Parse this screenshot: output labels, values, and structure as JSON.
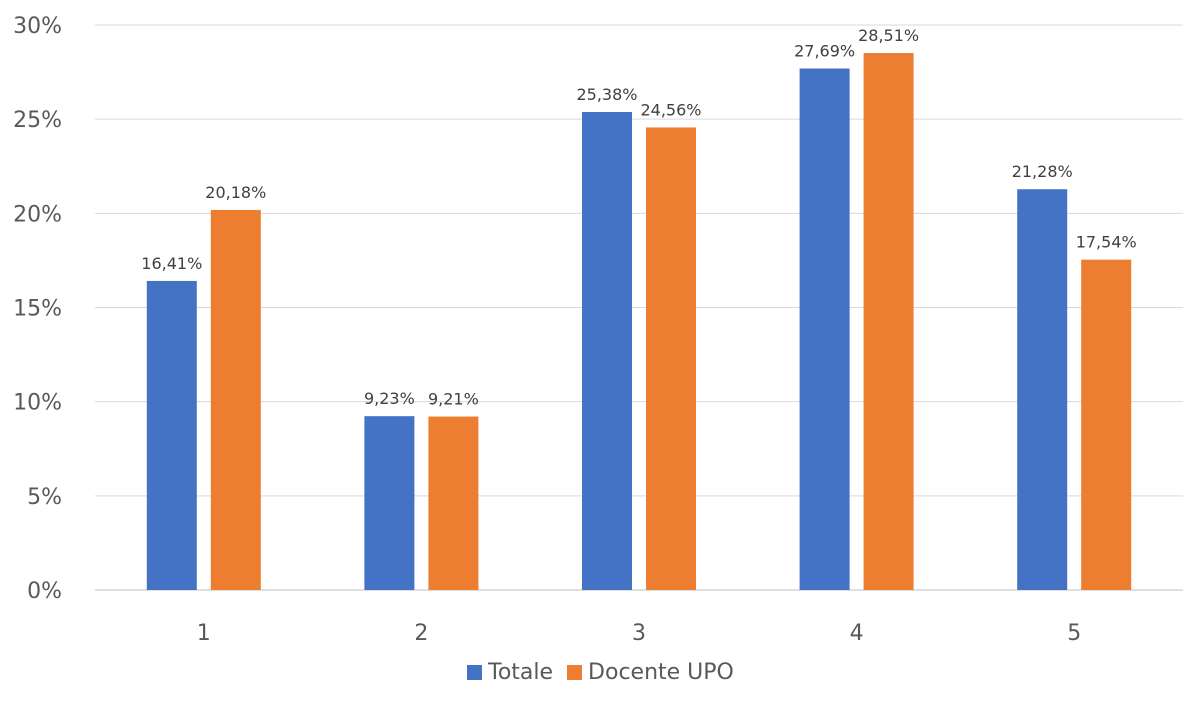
{
  "chart_data": {
    "type": "bar",
    "categories": [
      "1",
      "2",
      "3",
      "4",
      "5"
    ],
    "series": [
      {
        "name": "Totale",
        "color": "#4472C4",
        "values": [
          16.41,
          9.23,
          25.38,
          27.69,
          21.28
        ],
        "labels": [
          "16,41%",
          "9,23%",
          "25,38%",
          "27,69%",
          "21,28%"
        ]
      },
      {
        "name": "Docente UPO",
        "color": "#ED7D31",
        "values": [
          20.18,
          9.21,
          24.56,
          28.51,
          17.54
        ],
        "labels": [
          "20,18%",
          "9,21%",
          "24,56%",
          "28,51%",
          "17,54%"
        ]
      }
    ],
    "ylim": [
      0,
      30
    ],
    "yticks": [
      0,
      5,
      10,
      15,
      20,
      25,
      30
    ],
    "ytick_labels": [
      "0%",
      "5%",
      "10%",
      "15%",
      "20%",
      "25%",
      "30%"
    ],
    "grid": true,
    "legend_position": "bottom",
    "title": "",
    "xlabel": "",
    "ylabel": ""
  }
}
